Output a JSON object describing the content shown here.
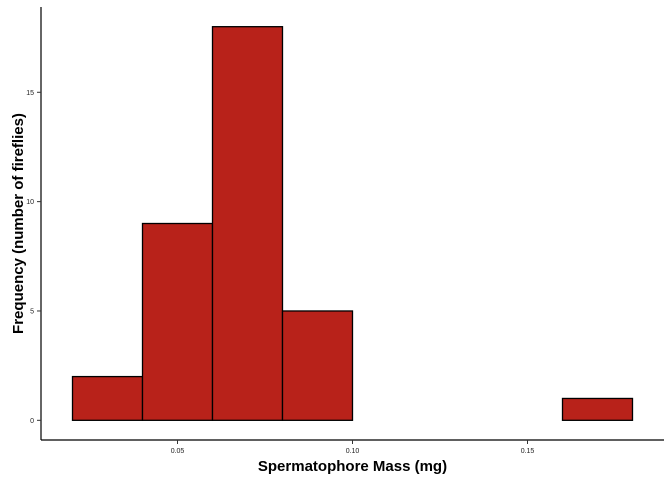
{
  "chart_data": {
    "type": "bar",
    "subtype": "histogram",
    "title": "",
    "xlabel": "Spermatophore Mass (mg)",
    "ylabel": "Frequency (number of fireflies)",
    "bins": [
      {
        "start": 0.02,
        "end": 0.04,
        "count": 2
      },
      {
        "start": 0.04,
        "end": 0.06,
        "count": 9
      },
      {
        "start": 0.06,
        "end": 0.08,
        "count": 18
      },
      {
        "start": 0.08,
        "end": 0.1,
        "count": 5
      },
      {
        "start": 0.1,
        "end": 0.12,
        "count": 0
      },
      {
        "start": 0.12,
        "end": 0.14,
        "count": 0
      },
      {
        "start": 0.14,
        "end": 0.16,
        "count": 0
      },
      {
        "start": 0.16,
        "end": 0.18,
        "count": 1
      }
    ],
    "xlim": [
      0.011,
      0.189
    ],
    "ylim": [
      -0.9,
      18.9
    ],
    "x_ticks": [
      0.05,
      0.1,
      0.15
    ],
    "x_tick_labels": [
      "0.05",
      "0.10",
      "0.15"
    ],
    "y_ticks": [
      0,
      5,
      10,
      15
    ],
    "y_tick_labels": [
      "0",
      "5",
      "10",
      "15"
    ],
    "grid": false,
    "bar_fill": "#B8221A",
    "bar_stroke": "#000000"
  }
}
